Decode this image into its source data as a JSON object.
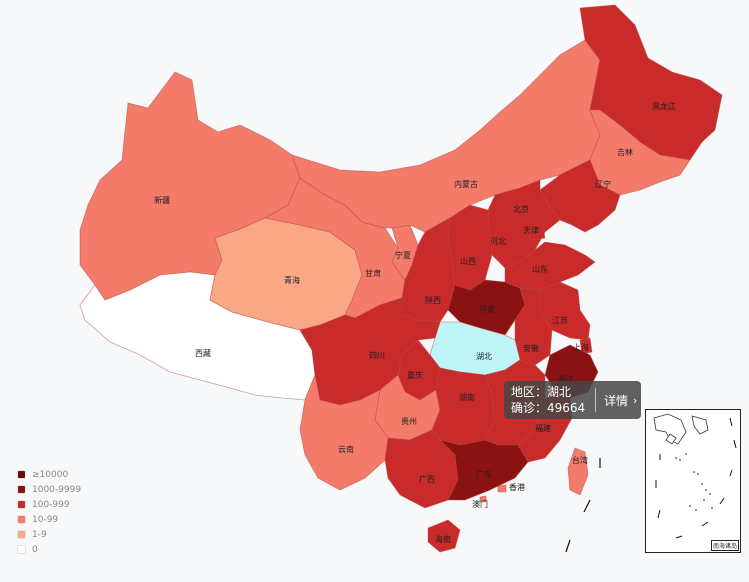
{
  "map": {
    "provinces": [
      {
        "key": "heilongjiang",
        "name": "黑龙江",
        "level": "100-999"
      },
      {
        "key": "jilin",
        "name": "吉林",
        "level": "10-99"
      },
      {
        "key": "liaoning",
        "name": "辽宁",
        "level": "100-999"
      },
      {
        "key": "neimenggu",
        "name": "内蒙古",
        "level": "10-99"
      },
      {
        "key": "xinjiang",
        "name": "新疆",
        "level": "10-99"
      },
      {
        "key": "xizang",
        "name": "西藏",
        "level": "0"
      },
      {
        "key": "qinghai",
        "name": "青海",
        "level": "1-9"
      },
      {
        "key": "gansu",
        "name": "甘肃",
        "level": "10-99"
      },
      {
        "key": "ningxia",
        "name": "宁夏",
        "level": "10-99"
      },
      {
        "key": "shanxi3",
        "name": "陕西",
        "level": "100-999"
      },
      {
        "key": "shanxi",
        "name": "山西",
        "level": "100-999"
      },
      {
        "key": "hebei",
        "name": "河北",
        "level": "100-999"
      },
      {
        "key": "beijing",
        "name": "北京",
        "level": "100-999"
      },
      {
        "key": "tianjin",
        "name": "天津",
        "level": "100-999"
      },
      {
        "key": "shandong",
        "name": "山东",
        "level": "100-999"
      },
      {
        "key": "henan",
        "name": "河南",
        "level": "1000-9999"
      },
      {
        "key": "jiangsu",
        "name": "江苏",
        "level": "100-999"
      },
      {
        "key": "anhui",
        "name": "安徽",
        "level": "100-999"
      },
      {
        "key": "shanghai",
        "name": "上海",
        "level": "100-999"
      },
      {
        "key": "zhejiang",
        "name": "浙江",
        "level": "1000-9999"
      },
      {
        "key": "hubei",
        "name": "湖北",
        "level": "selected"
      },
      {
        "key": "sichuan",
        "name": "四川",
        "level": "100-999"
      },
      {
        "key": "chongqing",
        "name": "重庆",
        "level": "100-999"
      },
      {
        "key": "hunan",
        "name": "湖南",
        "level": "100-999"
      },
      {
        "key": "jiangxi",
        "name": "江西",
        "level": "100-999"
      },
      {
        "key": "fujian",
        "name": "福建",
        "level": "100-999"
      },
      {
        "key": "guizhou",
        "name": "贵州",
        "level": "10-99"
      },
      {
        "key": "yunnan",
        "name": "云南",
        "level": "10-99"
      },
      {
        "key": "guangxi",
        "name": "广西",
        "level": "100-999"
      },
      {
        "key": "guangdong",
        "name": "广东",
        "level": "1000-9999"
      },
      {
        "key": "taiwan",
        "name": "台湾",
        "level": "10-99"
      },
      {
        "key": "hainan",
        "name": "海南",
        "level": "100-999"
      },
      {
        "key": "xianggang",
        "name": "香港",
        "level": "10-99"
      },
      {
        "key": "aomen",
        "name": "澳门",
        "level": "10-99"
      }
    ]
  },
  "legend": {
    "items": [
      {
        "label": "≥10000",
        "color": "#6b0a0a"
      },
      {
        "label": "1000-9999",
        "color": "#8b1212"
      },
      {
        "label": "100-999",
        "color": "#c92a2a"
      },
      {
        "label": "10-99",
        "color": "#f47a6a"
      },
      {
        "label": "1-9",
        "color": "#f9a886"
      },
      {
        "label": "0",
        "color": "#ffffff"
      }
    ]
  },
  "tooltip": {
    "region_label": "地区：湖北",
    "confirmed_label": "确诊：49664",
    "detail_label": "详情"
  },
  "inset": {
    "label": "南海诸岛"
  },
  "colors": {
    "selected": "#bff5f7",
    "background": "#f7f8fa"
  }
}
